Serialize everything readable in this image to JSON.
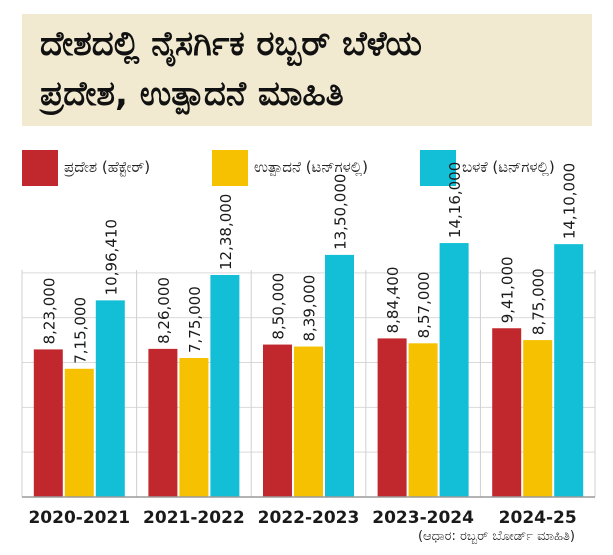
{
  "title": {
    "line1": "ದೇಶದಲ್ಲಿ ನೈಸರ್ಗಿಕ ರಬ್ಬರ್ ಬೆಳೆಯ",
    "line2": "ಪ್ರದೇಶ, ಉತ್ಪಾದನೆ ಮಾಹಿತಿ"
  },
  "legend": [
    {
      "label": "ಪ್ರದೇಶ (ಹೆಕ್ಟೇರ್)",
      "color": "#c0282e"
    },
    {
      "label": "ಉತ್ಪಾದನೆ (ಟನ್‌ಗಳಲ್ಲಿ)",
      "color": "#f6c100"
    },
    {
      "label": "ಬಳಕೆ (ಟನ್‌ಗಳಲ್ಲಿ)",
      "color": "#12bfd6"
    }
  ],
  "source": "(ಆಧಾರ: ರಬ್ಬರ್ ಬೋರ್ಡ್ ಮಾಹಿತಿ)",
  "chart_data": {
    "type": "bar",
    "categories": [
      "2020-2021",
      "2021-2022",
      "2022-2023",
      "2023-2024",
      "2024-25"
    ],
    "series": [
      {
        "name": "ಪ್ರದೇಶ (ಹೆಕ್ಟೇರ್)",
        "color": "#c0282e",
        "values": [
          823000,
          826000,
          850000,
          884400,
          941000
        ],
        "labels": [
          "8,23,000",
          "8,26,000",
          "8,50,000",
          "8,84,400",
          "9,41,000"
        ]
      },
      {
        "name": "ಉತ್ಪಾದನೆ (ಟನ್‌ಗಳಲ್ಲಿ)",
        "color": "#f6c100",
        "values": [
          715000,
          775000,
          839000,
          857000,
          875000
        ],
        "labels": [
          "7,15,000",
          "7,75,000",
          "8,39,000",
          "8,57,000",
          "8,75,000"
        ]
      },
      {
        "name": "ಬಳಕೆ (ಟನ್‌ಗಳಲ್ಲಿ)",
        "color": "#12bfd6",
        "values": [
          1096410,
          1238000,
          1350000,
          1416000,
          1410000
        ],
        "labels": [
          "10,96,410",
          "12,38,000",
          "13,50,000",
          "14,16,000",
          "14,10,000"
        ]
      }
    ],
    "ylim": [
      0,
      1500000
    ],
    "grid": true,
    "legend": "top"
  }
}
